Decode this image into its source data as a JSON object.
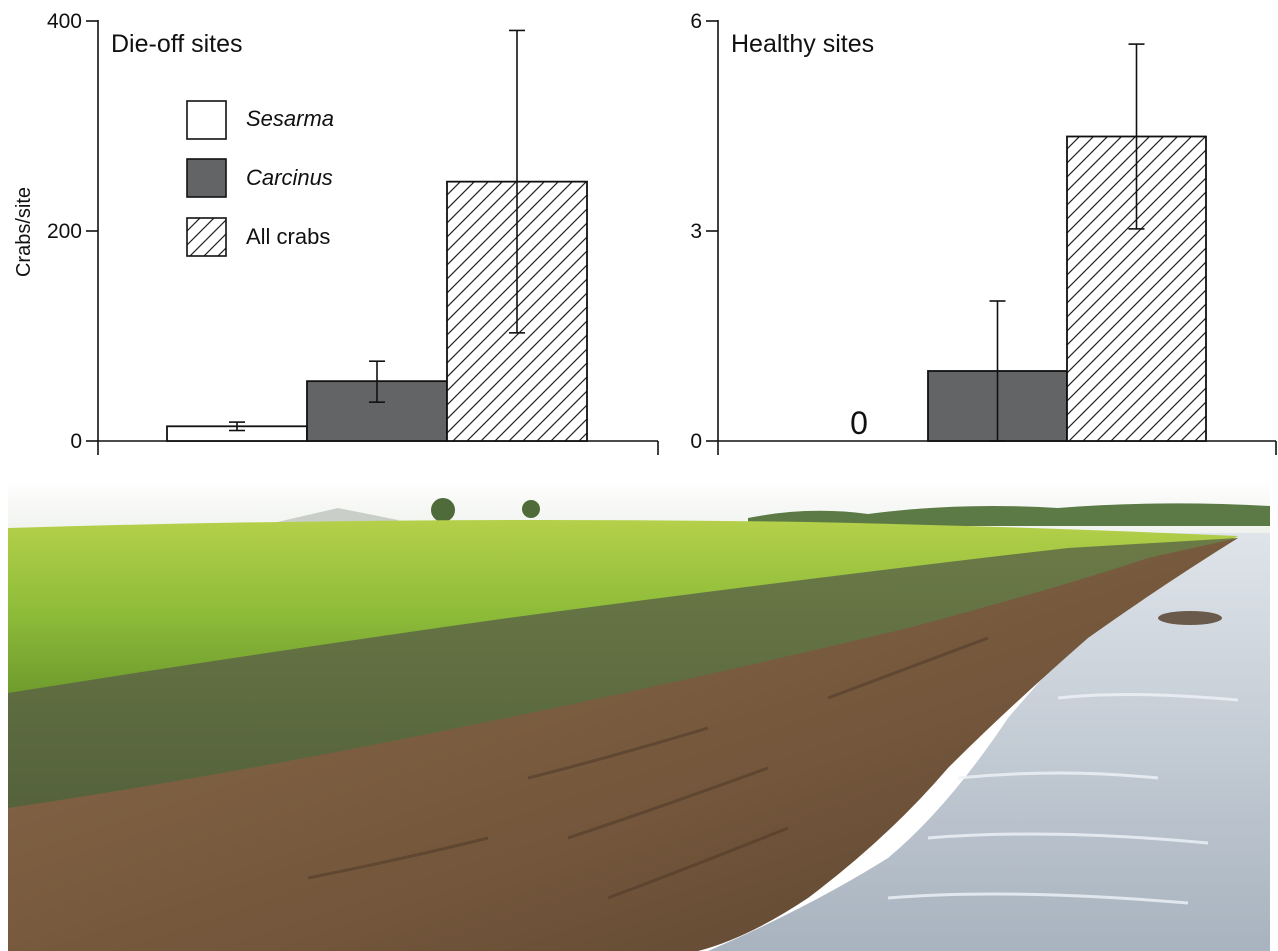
{
  "chart_data": [
    {
      "type": "bar",
      "title": "Die-off sites",
      "ylabel": "Crabs/site",
      "ylim": [
        0,
        400
      ],
      "yticks": [
        "0",
        "200",
        "400"
      ],
      "categories": [
        "Sesarma",
        "Carcinus",
        "All crabs"
      ],
      "values": [
        14,
        57,
        247
      ],
      "error_low": [
        10,
        37,
        103
      ],
      "error_high": [
        18,
        76,
        391
      ],
      "legend": [
        {
          "label": "Sesarma",
          "style": "white",
          "italic": true
        },
        {
          "label": "Carcinus",
          "style": "gray",
          "italic": true
        },
        {
          "label": "All crabs",
          "style": "hatched",
          "italic": false
        }
      ],
      "legend_position": "top-left"
    },
    {
      "type": "bar",
      "title": "Healthy sites",
      "ylabel": "",
      "ylim": [
        0,
        6
      ],
      "yticks": [
        "0",
        "3",
        "6"
      ],
      "categories": [
        "Sesarma",
        "Carcinus",
        "All crabs"
      ],
      "values": [
        0,
        1.0,
        4.35
      ],
      "error_low": [
        null,
        0.0,
        3.03
      ],
      "error_high": [
        null,
        2.0,
        5.67
      ],
      "zero_label": "0"
    }
  ],
  "colors": {
    "sesarma_fill": "#ffffff",
    "carcinus_fill": "#636466",
    "hatch_line": "#222222",
    "axis": "#111111"
  },
  "photo": {
    "icon": "salt-marsh-erosion-photo",
    "sky": "#f4f6f3",
    "grass": "#9cc23a",
    "mud": "#7a5a3c",
    "water": "#c4cdd6"
  }
}
